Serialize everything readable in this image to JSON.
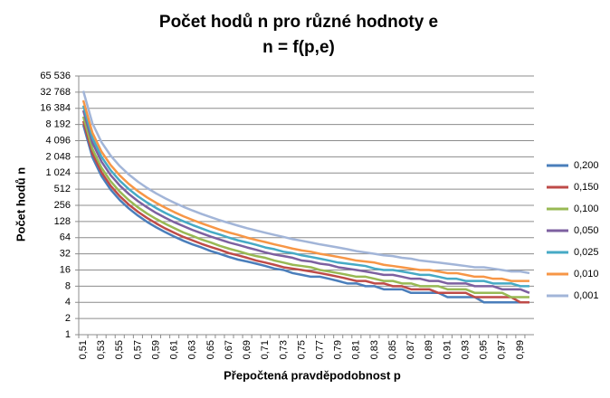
{
  "chart_data": {
    "type": "line",
    "title": "Počet hodů n pro různé hodnoty e",
    "subtitle": "n = f(p,e)",
    "x_label": "Přepočtená pravděpodobnost p",
    "y_label": "Počet hodů n",
    "log_scale_y": 2,
    "grid": true,
    "legend": "right",
    "categories": [
      "0,51",
      null,
      "0,53",
      null,
      "0,55",
      null,
      "0,57",
      null,
      "0,59",
      null,
      "0,61",
      null,
      "0,63",
      null,
      "0,65",
      null,
      "0,67",
      null,
      "0,69",
      null,
      "0,71",
      null,
      "0,73",
      null,
      "0,75",
      null,
      "0,77",
      null,
      "0,79",
      null,
      "0,81",
      null,
      "0,83",
      null,
      "0,85",
      null,
      "0,87",
      null,
      "0,89",
      null,
      "0,91",
      null,
      "0,93",
      null,
      "0,95",
      null,
      "0,97",
      null,
      "0,99",
      null
    ],
    "ylim": [
      1,
      65536
    ],
    "yticks": [
      1,
      2,
      4,
      8,
      16,
      32,
      64,
      128,
      256,
      512,
      {
        "value": 1024,
        "label": "1 024"
      },
      {
        "value": 2048,
        "label": "2 048"
      },
      {
        "value": 4096,
        "label": "4 096"
      },
      {
        "value": 8192,
        "label": "8 192"
      },
      {
        "value": 16384,
        "label": "16 384"
      },
      {
        "value": 32768,
        "label": "32 768"
      },
      {
        "value": 65536,
        "label": "65 536"
      }
    ],
    "series": [
      {
        "name": "0,200",
        "color": "#4a7ebb",
        "values": [
          8048,
          2012,
          895,
          503,
          322,
          224,
          165,
          126,
          100,
          81,
          67,
          56,
          48,
          42,
          36,
          32,
          28,
          25,
          23,
          21,
          19,
          17,
          16,
          14,
          13,
          12,
          12,
          11,
          10,
          9,
          9,
          8,
          8,
          7,
          7,
          7,
          6,
          6,
          6,
          6,
          5,
          5,
          5,
          5,
          4,
          4,
          4,
          4,
          4,
          4
        ]
      },
      {
        "name": "0,150",
        "color": "#be4b48",
        "values": [
          9486,
          2372,
          1054,
          593,
          380,
          264,
          194,
          149,
          118,
          95,
          79,
          66,
          57,
          49,
          43,
          38,
          33,
          30,
          27,
          24,
          22,
          20,
          18,
          17,
          16,
          15,
          14,
          13,
          12,
          11,
          10,
          10,
          9,
          9,
          8,
          8,
          7,
          7,
          7,
          6,
          6,
          6,
          6,
          5,
          5,
          5,
          5,
          5,
          4,
          4
        ]
      },
      {
        "name": "0,100",
        "color": "#98b954",
        "values": [
          11513,
          2879,
          1280,
          720,
          461,
          320,
          235,
          180,
          143,
          116,
          96,
          80,
          69,
          59,
          52,
          45,
          40,
          36,
          32,
          29,
          27,
          24,
          22,
          20,
          19,
          18,
          16,
          15,
          14,
          13,
          12,
          12,
          11,
          10,
          10,
          9,
          9,
          8,
          8,
          8,
          7,
          7,
          7,
          6,
          6,
          6,
          6,
          5,
          5,
          5
        ]
      },
      {
        "name": "0,050",
        "color": "#7d60a0",
        "values": [
          14979,
          3745,
          1665,
          937,
          600,
          417,
          306,
          235,
          185,
          150,
          124,
          105,
          89,
          77,
          67,
          59,
          52,
          47,
          42,
          38,
          34,
          31,
          29,
          27,
          24,
          23,
          21,
          20,
          18,
          17,
          16,
          15,
          14,
          13,
          13,
          12,
          11,
          11,
          10,
          10,
          9,
          9,
          9,
          8,
          8,
          8,
          7,
          7,
          7,
          6
        ]
      },
      {
        "name": "0,025",
        "color": "#46aac5",
        "values": [
          18445,
          4612,
          2050,
          1153,
          738,
          513,
          377,
          289,
          228,
          185,
          153,
          129,
          110,
          95,
          82,
          73,
          64,
          57,
          52,
          47,
          42,
          39,
          35,
          33,
          30,
          28,
          26,
          24,
          22,
          21,
          20,
          19,
          17,
          16,
          16,
          15,
          14,
          13,
          13,
          12,
          11,
          11,
          10,
          10,
          10,
          9,
          9,
          9,
          8,
          8
        ]
      },
      {
        "name": "0,010",
        "color": "#f79646",
        "values": [
          23026,
          5757,
          2559,
          1440,
          922,
          640,
          470,
          360,
          285,
          231,
          191,
          160,
          137,
          118,
          103,
          90,
          80,
          72,
          64,
          58,
          53,
          48,
          44,
          40,
          37,
          35,
          32,
          30,
          28,
          26,
          24,
          23,
          22,
          20,
          19,
          18,
          17,
          16,
          16,
          15,
          14,
          14,
          13,
          12,
          12,
          11,
          11,
          10,
          10,
          10
        ]
      },
      {
        "name": "0,001",
        "color": "#a2b5d8",
        "values": [
          34539,
          8635,
          3838,
          2159,
          1382,
          960,
          705,
          540,
          427,
          346,
          286,
          240,
          205,
          177,
          154,
          135,
          120,
          107,
          96,
          87,
          79,
          72,
          66,
          60,
          56,
          52,
          48,
          45,
          42,
          39,
          36,
          34,
          32,
          30,
          29,
          27,
          26,
          24,
          23,
          22,
          21,
          20,
          19,
          18,
          18,
          17,
          16,
          15,
          15,
          14
        ]
      }
    ]
  }
}
